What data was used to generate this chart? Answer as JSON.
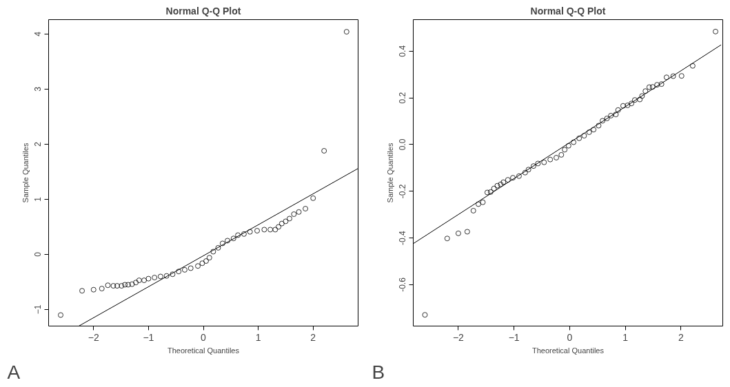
{
  "chart_data": [
    {
      "type": "scatter",
      "title": "Normal Q-Q Plot",
      "xlabel": "Theoretical Quantiles",
      "ylabel": "Sample Quantiles",
      "annotations": [
        "A"
      ],
      "grid": false,
      "xlim": [
        -2.82,
        2.82
      ],
      "ylim": [
        -1.3,
        4.26
      ],
      "xticks": [
        -2,
        -1,
        0,
        1,
        2
      ],
      "yticks": [
        -1,
        0,
        1,
        2,
        3,
        4
      ],
      "series": [
        {
          "marker": "circle",
          "color": "#000000",
          "x": [
            -2.6,
            -2.21,
            -2.0,
            -1.85,
            -1.74,
            -1.64,
            -1.57,
            -1.49,
            -1.43,
            -1.37,
            -1.3,
            -1.23,
            -1.17,
            -1.08,
            -1.0,
            -0.89,
            -0.78,
            -0.67,
            -0.56,
            -0.45,
            -0.34,
            -0.23,
            -0.1,
            -0.02,
            0.05,
            0.11,
            0.18,
            0.27,
            0.35,
            0.44,
            0.55,
            0.63,
            0.74,
            0.85,
            0.98,
            1.11,
            1.22,
            1.31,
            1.37,
            1.43,
            1.5,
            1.57,
            1.65,
            1.74,
            1.86,
            2.0,
            2.2,
            2.61
          ],
          "values": [
            -1.1,
            -0.66,
            -0.64,
            -0.62,
            -0.56,
            -0.57,
            -0.57,
            -0.57,
            -0.55,
            -0.55,
            -0.54,
            -0.51,
            -0.47,
            -0.47,
            -0.44,
            -0.42,
            -0.4,
            -0.39,
            -0.36,
            -0.31,
            -0.28,
            -0.25,
            -0.21,
            -0.16,
            -0.12,
            -0.06,
            0.05,
            0.12,
            0.2,
            0.25,
            0.29,
            0.35,
            0.37,
            0.41,
            0.43,
            0.45,
            0.45,
            0.45,
            0.5,
            0.56,
            0.6,
            0.65,
            0.73,
            0.77,
            0.83,
            1.02,
            1.88,
            4.04
          ]
        },
        {
          "type": "line",
          "marker": "none",
          "color": "#000000",
          "x": [
            -2.27,
            2.82
          ],
          "values": [
            -1.3,
            1.56
          ]
        }
      ]
    },
    {
      "type": "scatter",
      "title": "Normal Q-Q Plot",
      "xlabel": "Theoretical Quantiles",
      "ylabel": "Sample Quantiles",
      "annotations": [
        "B"
      ],
      "grid": false,
      "xlim": [
        -2.81,
        2.75
      ],
      "ylim": [
        -0.777,
        0.535
      ],
      "xticks": [
        -2,
        -1,
        0,
        1,
        2
      ],
      "yticks": [
        {
          "value": -0.6,
          "label": "-0.6"
        },
        {
          "value": -0.4,
          "label": "-0.4"
        },
        {
          "value": -0.2,
          "label": "-0.2"
        },
        {
          "value": 0,
          "label": "0.0"
        },
        {
          "value": 0.2,
          "label": "0.2"
        },
        {
          "value": 0.4,
          "label": "0.4"
        }
      ],
      "series": [
        {
          "marker": "circle",
          "color": "#000000",
          "x": [
            -2.6,
            -2.2,
            -2.0,
            -1.84,
            -1.73,
            -1.64,
            -1.56,
            -1.48,
            -1.42,
            -1.36,
            -1.3,
            -1.24,
            -1.19,
            -1.11,
            -1.02,
            -0.91,
            -0.8,
            -0.74,
            -0.65,
            -0.57,
            -0.46,
            -0.35,
            -0.24,
            -0.15,
            -0.09,
            -0.02,
            0.07,
            0.17,
            0.26,
            0.35,
            0.43,
            0.52,
            0.59,
            0.67,
            0.74,
            0.83,
            0.87,
            0.96,
            1.04,
            1.11,
            1.17,
            1.26,
            1.3,
            1.36,
            1.43,
            1.49,
            1.57,
            1.65,
            1.74,
            1.86,
            2.01,
            2.21,
            2.62
          ],
          "values": [
            -0.729,
            -0.402,
            -0.38,
            -0.373,
            -0.283,
            -0.255,
            -0.247,
            -0.205,
            -0.203,
            -0.188,
            -0.176,
            -0.17,
            -0.161,
            -0.151,
            -0.142,
            -0.135,
            -0.12,
            -0.107,
            -0.092,
            -0.081,
            -0.076,
            -0.064,
            -0.056,
            -0.044,
            -0.022,
            -0.005,
            0.01,
            0.027,
            0.038,
            0.053,
            0.064,
            0.081,
            0.102,
            0.112,
            0.124,
            0.129,
            0.148,
            0.166,
            0.168,
            0.176,
            0.191,
            0.193,
            0.208,
            0.229,
            0.246,
            0.247,
            0.256,
            0.259,
            0.288,
            0.293,
            0.294,
            0.337,
            0.484
          ]
        },
        {
          "type": "line",
          "marker": "none",
          "color": "#000000",
          "x": [
            -2.81,
            2.72
          ],
          "values": [
            -0.424,
            0.427
          ]
        }
      ]
    }
  ]
}
